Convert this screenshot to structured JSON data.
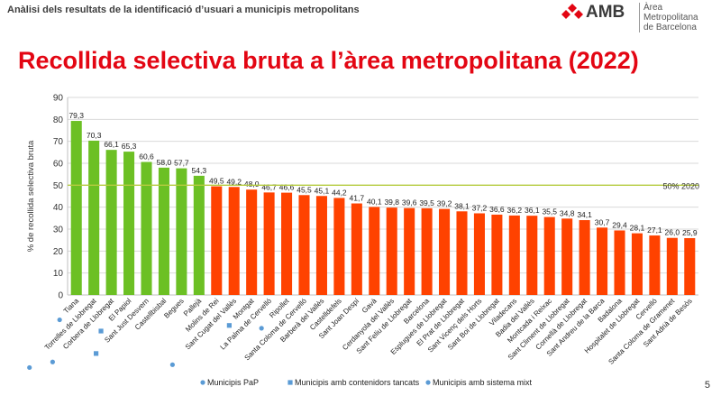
{
  "header": {
    "subtitle": "Anàlisi dels resultats de la identificació d’usuari a municipis metropolitans",
    "logo_text": "AMB",
    "logo_sub_line1": "Àrea Metropolitana",
    "logo_sub_line2": "de Barcelona",
    "logo_color": "#e30613"
  },
  "page_number": "5",
  "chart_data": {
    "type": "bar",
    "title": "Recollida selectiva bruta a l’àrea metropolitana (2022)",
    "ylabel": "% de recollida selectiva bruta",
    "xlabel": "",
    "ylim": [
      0,
      90
    ],
    "yticks": [
      0,
      10,
      20,
      30,
      40,
      50,
      60,
      70,
      80,
      90
    ],
    "grid": true,
    "target_line": {
      "value": 50,
      "label": "50% 2020",
      "color": "#b5cc3f"
    },
    "colors": {
      "pap": "#6cc024",
      "other": "#ff4200"
    },
    "categories": [
      "Tiana",
      "Torrelles de Llobregat",
      "Corbera de Llobregat",
      "El Papiol",
      "Sant Just Desvern",
      "Castellbisbal",
      "Begues",
      "Pallejà",
      "Molins de Rei",
      "Sant Cugat del Vallès",
      "Montgat",
      "La Palma de Cervelló",
      "Ripollet",
      "Santa Coloma de Cervelló",
      "Barberà del Vallès",
      "Castelldefels",
      "Sant Joan Despí",
      "Gavà",
      "Cerdanyola del Vallès",
      "Sant Feliu de Llobregat",
      "Barcelona",
      "Esplugues de Llobregat",
      "El Prat de Llobregat",
      "Sant Vicenç dels Horts",
      "Sant Boi de Llobregat",
      "Viladecans",
      "Badia del Vallès",
      "Montcada i Reixac",
      "Sant Climent de Llobregat",
      "Cornellà de Llobregat",
      "Sant Andreu de la Barca",
      "Badalona",
      "Hospitalet de Llobregat",
      "Cervelló",
      "Santa Coloma de Gramenet",
      "Sant Adrià de Besòs"
    ],
    "values": [
      79.3,
      70.3,
      66.1,
      65.3,
      60.6,
      58.0,
      57.7,
      54.3,
      49.5,
      49.2,
      48.0,
      46.7,
      46.6,
      45.5,
      45.1,
      44.2,
      41.7,
      40.1,
      39.8,
      39.6,
      39.5,
      39.2,
      38.1,
      37.2,
      36.6,
      36.2,
      36.1,
      35.5,
      34.8,
      34.1,
      30.7,
      29.4,
      28.1,
      27.1,
      26.0,
      25.9
    ],
    "value_labels": [
      "79,3",
      "70,3",
      "66,1",
      "65,3",
      "60,6",
      "58,0",
      "57,7",
      "54,3",
      "49,5",
      "49,2",
      "48,0",
      "46,7",
      "46,6",
      "45,5",
      "45,1",
      "44,2",
      "41,7",
      "40,1",
      "39,8",
      "39,6",
      "39,5",
      "39,2",
      "38,1",
      "37,2",
      "36,6",
      "36,2",
      "36,1",
      "35,5",
      "34,8",
      "34,1",
      "30,7",
      "29,4",
      "28,1",
      "27,1",
      "26,0",
      "25,9"
    ],
    "pap": [
      true,
      true,
      true,
      true,
      true,
      true,
      true,
      true,
      false,
      false,
      false,
      false,
      false,
      false,
      false,
      false,
      false,
      false,
      false,
      false,
      false,
      false,
      false,
      false,
      false,
      false,
      false,
      false,
      false,
      false,
      false,
      false,
      false,
      false,
      false,
      false
    ],
    "markers": [
      "circle",
      "circle",
      "circle",
      "square",
      "square",
      "",
      "",
      "",
      "",
      "circle",
      "square",
      "",
      "circle",
      "",
      "",
      "",
      "",
      "",
      "",
      "",
      "",
      "",
      "",
      "",
      "",
      "",
      "",
      "",
      "",
      "",
      "",
      "",
      "",
      "",
      "",
      ""
    ],
    "legend": [
      {
        "marker": "circle",
        "label": "Municipis PaP"
      },
      {
        "marker": "square",
        "label": "Municipis amb contenidors tancats"
      },
      {
        "marker": "circle",
        "label": "Municipis amb sistema mixt"
      }
    ],
    "marker_color": "#5b9bd5"
  }
}
